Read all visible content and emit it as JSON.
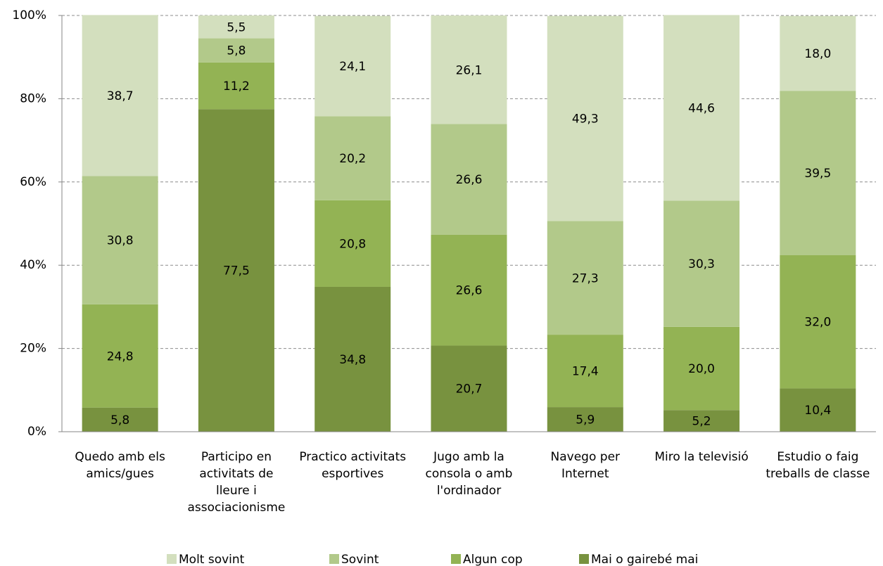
{
  "chart_data": {
    "type": "stacked_bar",
    "categories": [
      "Quedo amb els amics/gues",
      "Participo en activitats de lleure i associacionisme",
      "Practico activitats esportives",
      "Jugo amb la consola o amb l'ordinador",
      "Navego per Internet",
      "Miro la televisió",
      "Estudio o faig treballs de classe"
    ],
    "series": [
      {
        "name": "Molt sovint",
        "color": "#d3dfbe",
        "values": [
          38.7,
          5.5,
          24.1,
          26.1,
          49.3,
          44.6,
          18.0
        ],
        "value_labels": [
          "38,7",
          "5,5",
          "24,1",
          "26,1",
          "49,3",
          "44,6",
          "18,0"
        ]
      },
      {
        "name": "Sovint",
        "color": "#b2c98a",
        "values": [
          30.8,
          5.8,
          20.2,
          26.6,
          27.3,
          30.3,
          39.5
        ],
        "value_labels": [
          "30,8",
          "5,8",
          "20,2",
          "26,6",
          "27,3",
          "30,3",
          "39,5"
        ]
      },
      {
        "name": "Algun cop",
        "color": "#93b354",
        "values": [
          24.8,
          11.2,
          20.8,
          26.6,
          17.4,
          20.0,
          32.0
        ],
        "value_labels": [
          "24,8",
          "11,2",
          "20,8",
          "26,6",
          "17,4",
          "20,0",
          "32,0"
        ]
      },
      {
        "name": "Mai o gairebé mai",
        "color": "#78923f",
        "values": [
          5.8,
          77.5,
          34.8,
          20.7,
          5.9,
          5.2,
          10.4
        ],
        "value_labels": [
          "5,8",
          "77,5",
          "34,8",
          "20,7",
          "5,9",
          "5,2",
          "10,4"
        ]
      }
    ],
    "ylim": [
      0,
      100
    ],
    "yticks": [
      {
        "value": 0,
        "label": "0%"
      },
      {
        "value": 20,
        "label": "20%"
      },
      {
        "value": 40,
        "label": "40%"
      },
      {
        "value": 60,
        "label": "60%"
      },
      {
        "value": 80,
        "label": "80%"
      },
      {
        "value": 100,
        "label": "100%"
      }
    ],
    "grid": true,
    "legend": "bottom"
  }
}
